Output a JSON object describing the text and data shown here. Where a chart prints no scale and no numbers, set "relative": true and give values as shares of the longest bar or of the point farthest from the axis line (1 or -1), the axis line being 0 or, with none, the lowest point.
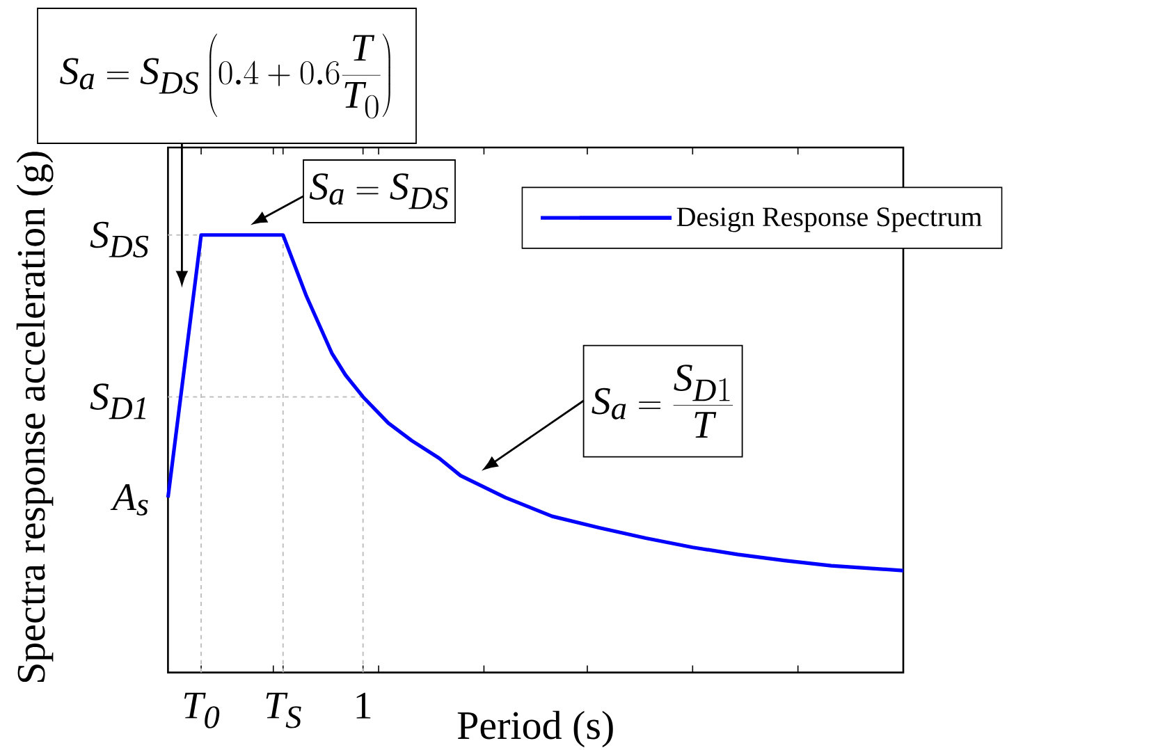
{
  "chart_data": {
    "type": "line",
    "xlabel": "Period (s)",
    "ylabel": "Spectra response acceleration (g)",
    "relative": true,
    "x": [
      0,
      0.17,
      0.59,
      0.65,
      0.71,
      0.77,
      0.84,
      0.91,
      1.0,
      1.13,
      1.25,
      1.39,
      1.5,
      1.73,
      1.97,
      2.21,
      2.45,
      2.69,
      2.92,
      3.16,
      3.4,
      3.77
    ],
    "series": [
      {
        "name": "Design Response Spectrum",
        "color": "#0000ff",
        "line_style": "solid",
        "values": [
          0.4,
          1.0,
          1.0,
          0.93,
          0.86,
          0.8,
          0.73,
          0.68,
          0.63,
          0.57,
          0.53,
          0.49,
          0.45,
          0.4,
          0.357,
          0.331,
          0.307,
          0.286,
          0.27,
          0.256,
          0.244,
          0.233
        ]
      }
    ],
    "xlim": [
      0,
      3.77
    ],
    "xticks": [
      {
        "value": 0.17,
        "label": "T$_{0}$"
      },
      {
        "value": 0.54,
        "label": null
      },
      {
        "value": 0.59,
        "label": "T$_{S}$"
      },
      1,
      {
        "value": 1.08,
        "label": null
      },
      {
        "value": 1.62,
        "label": null
      },
      {
        "value": 2.15,
        "label": null
      },
      {
        "value": 2.69,
        "label": null
      },
      {
        "value": 3.23,
        "label": null
      }
    ],
    "ref_lines": [
      {
        "axis": "x",
        "value": 0.17,
        "color": "#c0c0c0",
        "line_style": "dashed"
      },
      {
        "axis": "x",
        "value": 0.59,
        "color": "#c0c0c0",
        "line_style": "dashed"
      },
      {
        "axis": "x",
        "value": 1,
        "color": "#c0c0c0",
        "line_style": "dashed"
      },
      {
        "axis": "y",
        "value": 1.0,
        "label": "S$_{DS}$",
        "color": "#c0c0c0",
        "line_style": "dashed"
      },
      {
        "axis": "y",
        "value": 0.63,
        "label": "S$_{D1}$",
        "color": "#c0c0c0",
        "line_style": "dashed"
      }
    ],
    "annotations": [
      "S_a = S_{DS}\\left(0.4+0.6\\frac{T}{T_0}\\right)",
      "S_a = S_{DS}",
      "S_a = \\frac{S_{D1}}{T}",
      {
        "text": "A$_{s}$",
        "x": 0,
        "y": 0.4
      }
    ],
    "legend": "top right"
  }
}
